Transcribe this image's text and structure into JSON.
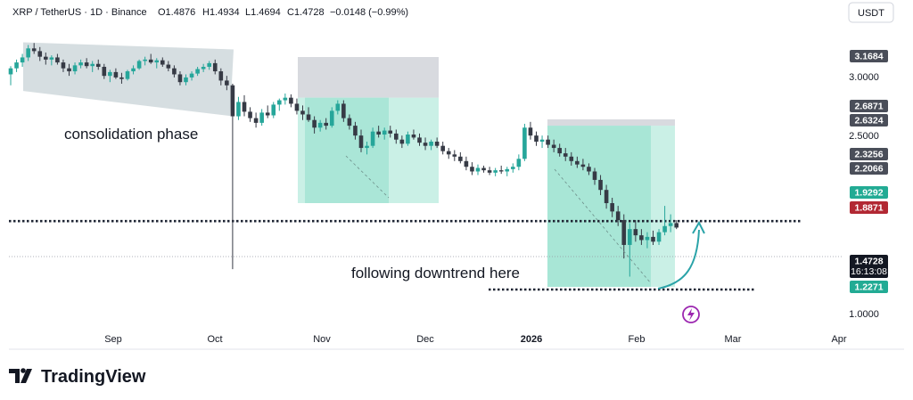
{
  "header": {
    "symbol": "XRP / TetherUS · 1D · Binance",
    "open": "O1.4876",
    "high": "H1.4934",
    "low": "L1.4694",
    "close": "C1.4728",
    "change": "−0.0148 (−0.99%)",
    "currency_button": "USDT"
  },
  "annotations": {
    "consolidation": "consolidation phase",
    "downtrend": "following downtrend here"
  },
  "brand": {
    "name": "TradingView"
  },
  "colors": {
    "up": "#26a69a",
    "down": "#363a45",
    "consolidation_fill": "#cfd8dc",
    "profit_zone": "#9fe3d2",
    "stop_zone": "#d8dadf",
    "arrow": "#2aa3a8",
    "lightning": "#9c27b0"
  },
  "chart_data": {
    "type": "candlestick",
    "x_ticks": [
      "Sep",
      "Oct",
      "Nov",
      "Dec",
      "2026",
      "Feb",
      "Mar",
      "Apr"
    ],
    "y_ticks": [
      "3.0000",
      "2.5000",
      "1.0000"
    ],
    "ylim": [
      0.97,
      3.35
    ],
    "price_labels": [
      {
        "value": "3.1684",
        "bg": "#4a4e59",
        "fg": "#ffffff"
      },
      {
        "value": "2.6871",
        "bg": "#4a4e59",
        "fg": "#ffffff"
      },
      {
        "value": "2.6324",
        "bg": "#4a4e59",
        "fg": "#ffffff"
      },
      {
        "value": "2.3256",
        "bg": "#4a4e59",
        "fg": "#ffffff"
      },
      {
        "value": "2.2066",
        "bg": "#4a4e59",
        "fg": "#ffffff"
      },
      {
        "value": "1.9292",
        "bg": "#22ab94",
        "fg": "#ffffff"
      },
      {
        "value": "1.8871",
        "bg": "#b22833",
        "fg": "#ffffff"
      },
      {
        "value": "1.4728",
        "bg": "#131722",
        "fg": "#ffffff",
        "sub": "16:13:08"
      },
      {
        "value": "1.2271",
        "bg": "#22ab94",
        "fg": "#ffffff"
      }
    ],
    "support_level": 1.495,
    "lower_level": 1.225,
    "consolidation_zone": {
      "top": 3.37,
      "bottom": 2.71
    },
    "positions": [
      {
        "entry": 2.63,
        "target_top": 2.2,
        "stop_top": 3.17
      },
      {
        "entry": 2.32,
        "target_top": 1.23,
        "stop_top": 2.69
      }
    ],
    "candles": [
      [
        2.92,
        3.03,
        2.78,
        3.0
      ],
      [
        3.0,
        3.12,
        2.95,
        3.08
      ],
      [
        3.08,
        3.2,
        3.02,
        3.15
      ],
      [
        3.15,
        3.33,
        3.1,
        3.28
      ],
      [
        3.28,
        3.36,
        3.2,
        3.24
      ],
      [
        3.24,
        3.3,
        3.1,
        3.16
      ],
      [
        3.16,
        3.22,
        3.05,
        3.12
      ],
      [
        3.12,
        3.18,
        3.04,
        3.15
      ],
      [
        3.15,
        3.2,
        3.05,
        3.08
      ],
      [
        3.08,
        3.12,
        2.95,
        3.0
      ],
      [
        3.0,
        3.06,
        2.9,
        2.96
      ],
      [
        2.96,
        3.08,
        2.92,
        3.04
      ],
      [
        3.04,
        3.12,
        3.0,
        3.08
      ],
      [
        3.08,
        3.14,
        3.0,
        3.03
      ],
      [
        3.03,
        3.1,
        2.95,
        3.06
      ],
      [
        3.06,
        3.12,
        2.98,
        3.02
      ],
      [
        3.02,
        3.06,
        2.86,
        2.9
      ],
      [
        2.9,
        2.98,
        2.82,
        2.95
      ],
      [
        2.95,
        3.0,
        2.86,
        2.88
      ],
      [
        2.88,
        2.94,
        2.8,
        2.86
      ],
      [
        2.86,
        2.98,
        2.84,
        2.96
      ],
      [
        2.96,
        3.04,
        2.92,
        3.0
      ],
      [
        3.0,
        3.12,
        2.98,
        3.1
      ],
      [
        3.1,
        3.16,
        3.04,
        3.12
      ],
      [
        3.12,
        3.2,
        3.06,
        3.08
      ],
      [
        3.08,
        3.14,
        3.0,
        3.11
      ],
      [
        3.11,
        3.15,
        3.02,
        3.05
      ],
      [
        3.05,
        3.1,
        2.96,
        3.0
      ],
      [
        3.0,
        3.04,
        2.88,
        2.92
      ],
      [
        2.92,
        2.96,
        2.78,
        2.82
      ],
      [
        2.82,
        2.92,
        2.78,
        2.88
      ],
      [
        2.88,
        2.96,
        2.84,
        2.93
      ],
      [
        2.93,
        3.02,
        2.9,
        2.99
      ],
      [
        2.99,
        3.06,
        2.95,
        3.02
      ],
      [
        3.02,
        3.1,
        2.98,
        3.07
      ],
      [
        3.07,
        3.12,
        2.92,
        2.96
      ],
      [
        2.96,
        3.0,
        2.78,
        2.84
      ],
      [
        2.84,
        2.9,
        2.72,
        2.78
      ],
      [
        2.78,
        2.8,
        1.22,
        2.42
      ],
      [
        2.42,
        2.64,
        2.38,
        2.58
      ],
      [
        2.58,
        2.66,
        2.42,
        2.47
      ],
      [
        2.47,
        2.52,
        2.36,
        2.4
      ],
      [
        2.4,
        2.46,
        2.3,
        2.35
      ],
      [
        2.35,
        2.5,
        2.32,
        2.46
      ],
      [
        2.46,
        2.54,
        2.4,
        2.43
      ],
      [
        2.43,
        2.58,
        2.4,
        2.55
      ],
      [
        2.55,
        2.62,
        2.48,
        2.6
      ],
      [
        2.6,
        2.68,
        2.55,
        2.63
      ],
      [
        2.63,
        2.67,
        2.52,
        2.56
      ],
      [
        2.56,
        2.62,
        2.44,
        2.48
      ],
      [
        2.48,
        2.54,
        2.38,
        2.44
      ],
      [
        2.44,
        2.52,
        2.36,
        2.38
      ],
      [
        2.38,
        2.42,
        2.24,
        2.3
      ],
      [
        2.3,
        2.38,
        2.26,
        2.35
      ],
      [
        2.35,
        2.4,
        2.28,
        2.32
      ],
      [
        2.32,
        2.52,
        2.3,
        2.48
      ],
      [
        2.48,
        2.6,
        2.44,
        2.56
      ],
      [
        2.56,
        2.6,
        2.36,
        2.4
      ],
      [
        2.4,
        2.44,
        2.28,
        2.32
      ],
      [
        2.32,
        2.36,
        2.18,
        2.22
      ],
      [
        2.22,
        2.28,
        2.06,
        2.1
      ],
      [
        2.1,
        2.16,
        2.04,
        2.12
      ],
      [
        2.12,
        2.3,
        2.1,
        2.26
      ],
      [
        2.26,
        2.32,
        2.2,
        2.23
      ],
      [
        2.23,
        2.3,
        2.18,
        2.27
      ],
      [
        2.27,
        2.32,
        2.2,
        2.24
      ],
      [
        2.24,
        2.28,
        2.14,
        2.18
      ],
      [
        2.18,
        2.22,
        2.1,
        2.14
      ],
      [
        2.14,
        2.26,
        2.12,
        2.23
      ],
      [
        2.23,
        2.28,
        2.18,
        2.2
      ],
      [
        2.2,
        2.24,
        2.12,
        2.15
      ],
      [
        2.15,
        2.2,
        2.08,
        2.12
      ],
      [
        2.12,
        2.18,
        2.08,
        2.16
      ],
      [
        2.16,
        2.2,
        2.1,
        2.12
      ],
      [
        2.12,
        2.16,
        2.04,
        2.07
      ],
      [
        2.07,
        2.1,
        2.0,
        2.04
      ],
      [
        2.04,
        2.08,
        1.98,
        2.02
      ],
      [
        2.02,
        2.06,
        1.96,
        1.98
      ],
      [
        1.98,
        2.02,
        1.9,
        1.93
      ],
      [
        1.93,
        1.97,
        1.86,
        1.89
      ],
      [
        1.89,
        1.95,
        1.86,
        1.92
      ],
      [
        1.92,
        1.94,
        1.88,
        1.9
      ],
      [
        1.9,
        1.93,
        1.86,
        1.88
      ],
      [
        1.88,
        1.92,
        1.85,
        1.9
      ],
      [
        1.9,
        1.94,
        1.87,
        1.89
      ],
      [
        1.89,
        1.93,
        1.85,
        1.91
      ],
      [
        1.91,
        1.96,
        1.88,
        1.93
      ],
      [
        1.93,
        2.04,
        1.9,
        2.0
      ],
      [
        2.0,
        2.34,
        1.98,
        2.3
      ],
      [
        2.3,
        2.36,
        2.18,
        2.22
      ],
      [
        2.22,
        2.26,
        2.12,
        2.16
      ],
      [
        2.16,
        2.22,
        2.1,
        2.18
      ],
      [
        2.18,
        2.22,
        2.1,
        2.13
      ],
      [
        2.13,
        2.18,
        2.06,
        2.1
      ],
      [
        2.1,
        2.14,
        2.02,
        2.05
      ],
      [
        2.05,
        2.1,
        1.98,
        2.02
      ],
      [
        2.02,
        2.06,
        1.94,
        1.98
      ],
      [
        1.98,
        2.02,
        1.92,
        1.95
      ],
      [
        1.95,
        2.0,
        1.9,
        1.93
      ],
      [
        1.93,
        1.96,
        1.86,
        1.89
      ],
      [
        1.89,
        1.92,
        1.78,
        1.82
      ],
      [
        1.82,
        1.86,
        1.7,
        1.74
      ],
      [
        1.74,
        1.78,
        1.6,
        1.64
      ],
      [
        1.64,
        1.68,
        1.54,
        1.58
      ],
      [
        1.58,
        1.62,
        1.48,
        1.52
      ],
      [
        1.52,
        1.56,
        1.28,
        1.36
      ],
      [
        1.36,
        1.5,
        1.18,
        1.46
      ],
      [
        1.46,
        1.52,
        1.38,
        1.42
      ],
      [
        1.42,
        1.46,
        1.36,
        1.39
      ],
      [
        1.39,
        1.44,
        1.34,
        1.41
      ],
      [
        1.41,
        1.45,
        1.36,
        1.38
      ],
      [
        1.38,
        1.46,
        1.36,
        1.44
      ],
      [
        1.44,
        1.62,
        1.42,
        1.48
      ],
      [
        1.48,
        1.56,
        1.44,
        1.5
      ],
      [
        1.5,
        1.52,
        1.46,
        1.47
      ]
    ]
  }
}
